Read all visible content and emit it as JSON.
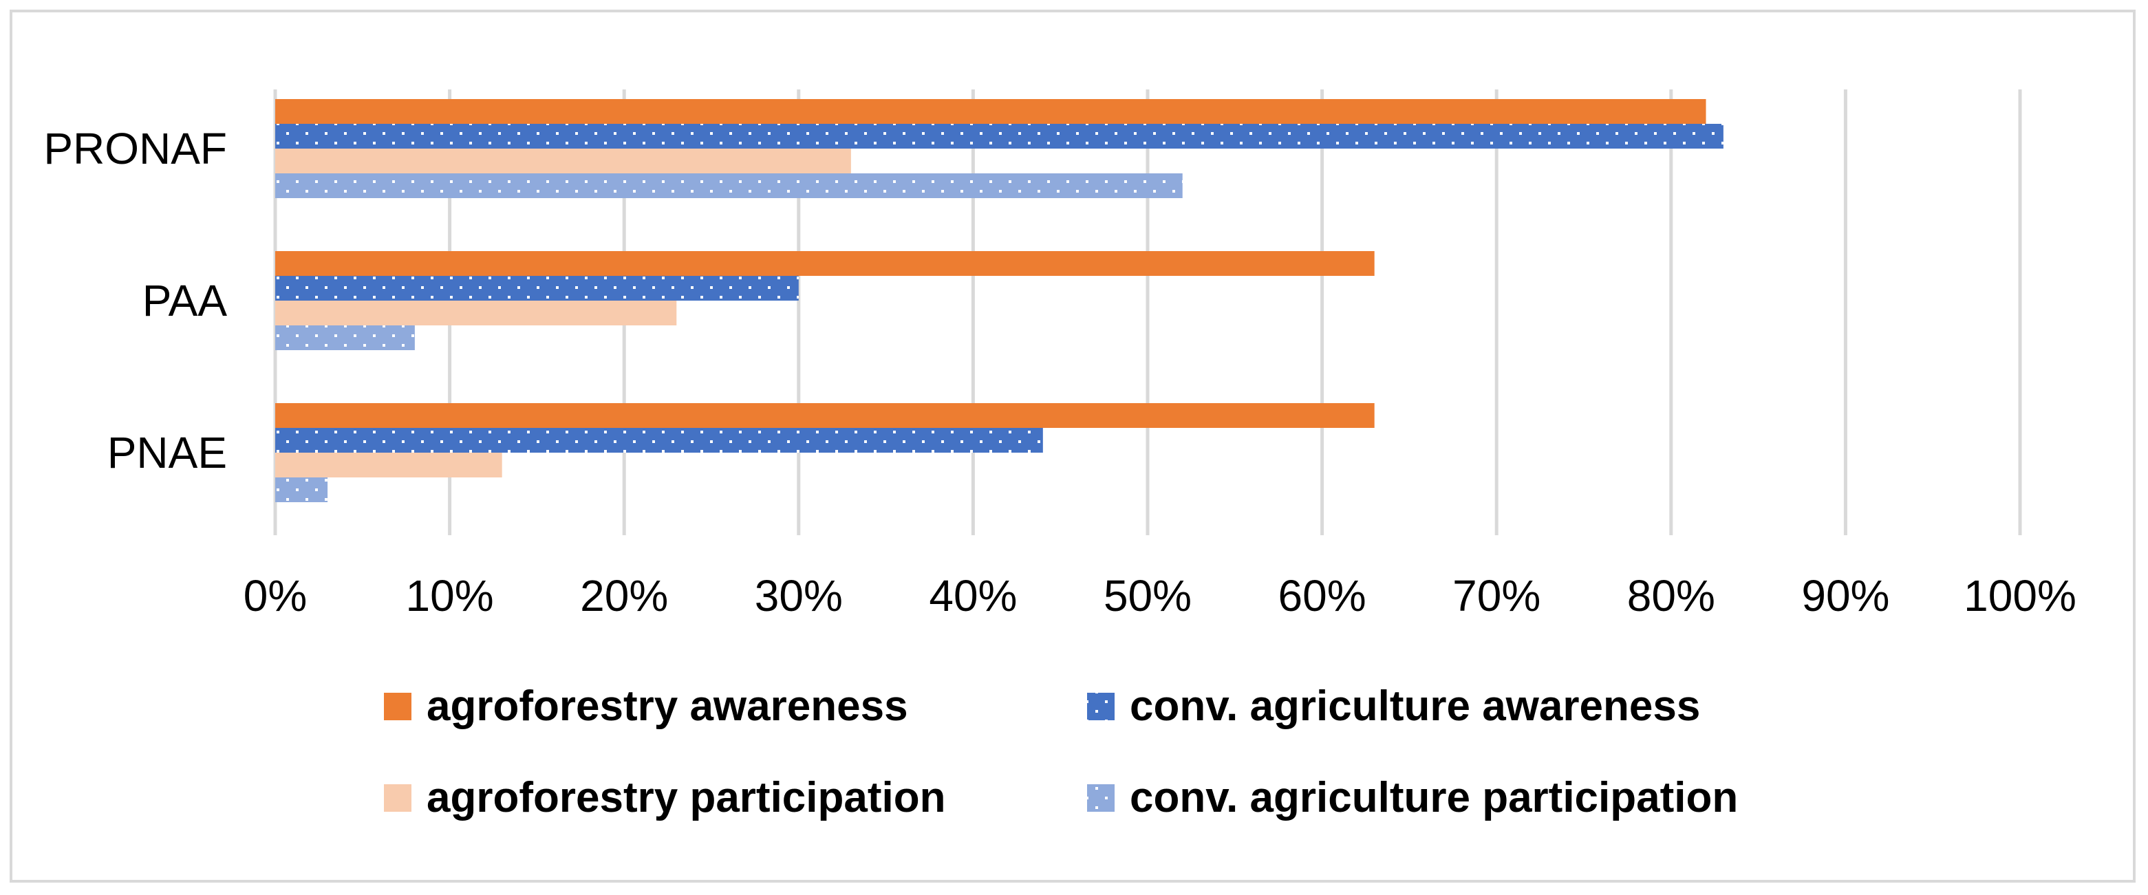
{
  "chart_data": {
    "type": "bar",
    "orientation": "horizontal",
    "categories": [
      "PRONAF",
      "PAA",
      "PNAE"
    ],
    "series": [
      {
        "name": "agroforestry awareness",
        "color": "#ed7d31",
        "pattern": "solid",
        "values": [
          82,
          63,
          63
        ]
      },
      {
        "name": "conv. agriculture awareness",
        "color": "#4472c4",
        "pattern": "dotted",
        "values": [
          83,
          30,
          44
        ]
      },
      {
        "name": "agroforestry participation",
        "color": "#f8cbad",
        "pattern": "solid",
        "values": [
          33,
          23,
          13
        ]
      },
      {
        "name": "conv. agriculture participation",
        "color": "#8faadc",
        "pattern": "dotted",
        "values": [
          52,
          8,
          3
        ]
      }
    ],
    "xlim": [
      0,
      100
    ],
    "x_ticks": [
      "0%",
      "10%",
      "20%",
      "30%",
      "40%",
      "50%",
      "60%",
      "70%",
      "80%",
      "90%",
      "100%"
    ],
    "x_tick_values": [
      0,
      10,
      20,
      30,
      40,
      50,
      60,
      70,
      80,
      90,
      100
    ],
    "grid": true,
    "legend_position": "bottom",
    "title": "",
    "xlabel": "",
    "ylabel": ""
  }
}
